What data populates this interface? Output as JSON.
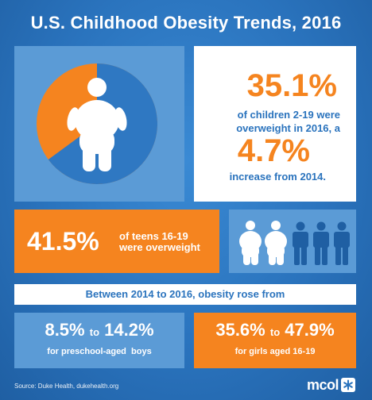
{
  "title": "U.S. Childhood Obesity Trends, 2016",
  "overview": {
    "overweight_share": 0.351,
    "stat1_value": "35.1%",
    "stat1_text_1": "of children 2-19 were",
    "stat1_text_2": "overweight in 2016, a",
    "stat2_value": "4.7%",
    "stat2_text": "increase from 2014."
  },
  "teens": {
    "value": "41.5%",
    "label_1": "of teens 16-19",
    "label_2": "were overweight",
    "overweight_people": 2,
    "total_people": 5
  },
  "banner": "Between 2014 to 2016, obesity rose from",
  "boys": {
    "from": "8.5%",
    "to_word": "to",
    "to": "14.2%",
    "label": "for preschool-aged  boys"
  },
  "girls": {
    "from": "35.6%",
    "to_word": "to",
    "to": "47.9%",
    "label": "for girls aged 16-19"
  },
  "source": "Source:  Duke Health, dukehealth.org",
  "logo": {
    "text": "mcol",
    "icon": "snowflake-icon"
  },
  "colors": {
    "background": "#2a73bd",
    "panel_blue": "#5b9bd6",
    "orange": "#f5841f",
    "pie_blue": "#2f78c2",
    "white": "#ffffff"
  }
}
